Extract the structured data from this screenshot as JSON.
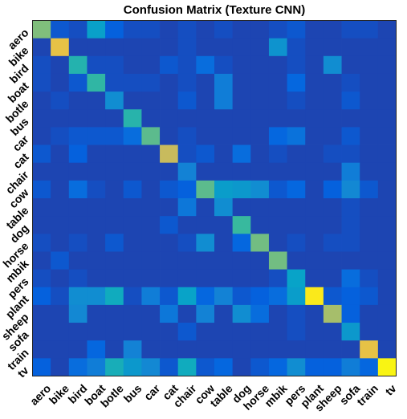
{
  "chart_data": {
    "type": "heatmap",
    "title": "Confusion Matrix (Texture CNN)",
    "xlabel": "",
    "ylabel": "",
    "categories": [
      "aero",
      "bike",
      "bird",
      "boat",
      "botle",
      "bus",
      "car",
      "cat",
      "chair",
      "cow",
      "table",
      "dog",
      "horse",
      "mbik",
      "pers",
      "plant",
      "sheep",
      "sofa",
      "train",
      "tv"
    ],
    "colormap": [
      "#352a87",
      "#0363e1",
      "#1485d4",
      "#06a7c6",
      "#38b99e",
      "#92bf73",
      "#d9ba56",
      "#fcce2e",
      "#f9fb0e"
    ],
    "value_range": [
      0,
      1
    ],
    "grid": false,
    "values": [
      [
        0.6,
        0.1,
        0.08,
        0.35,
        0.12,
        0.08,
        0.08,
        0.06,
        0.08,
        0.06,
        0.08,
        0.06,
        0.06,
        0.08,
        0.1,
        0.06,
        0.06,
        0.08,
        0.08,
        0.06
      ],
      [
        0.06,
        0.8,
        0.06,
        0.06,
        0.06,
        0.06,
        0.06,
        0.06,
        0.08,
        0.06,
        0.06,
        0.06,
        0.06,
        0.3,
        0.08,
        0.06,
        0.06,
        0.06,
        0.06,
        0.06
      ],
      [
        0.08,
        0.06,
        0.45,
        0.08,
        0.08,
        0.06,
        0.06,
        0.1,
        0.08,
        0.16,
        0.08,
        0.06,
        0.06,
        0.06,
        0.08,
        0.06,
        0.28,
        0.06,
        0.06,
        0.06
      ],
      [
        0.08,
        0.06,
        0.1,
        0.48,
        0.08,
        0.08,
        0.08,
        0.06,
        0.08,
        0.06,
        0.22,
        0.06,
        0.06,
        0.06,
        0.14,
        0.06,
        0.06,
        0.08,
        0.06,
        0.06
      ],
      [
        0.06,
        0.08,
        0.06,
        0.06,
        0.28,
        0.06,
        0.06,
        0.06,
        0.1,
        0.06,
        0.22,
        0.06,
        0.06,
        0.06,
        0.08,
        0.06,
        0.06,
        0.1,
        0.06,
        0.06
      ],
      [
        0.06,
        0.06,
        0.06,
        0.06,
        0.06,
        0.46,
        0.06,
        0.06,
        0.06,
        0.06,
        0.06,
        0.06,
        0.06,
        0.06,
        0.06,
        0.06,
        0.06,
        0.06,
        0.06,
        0.06
      ],
      [
        0.06,
        0.08,
        0.1,
        0.1,
        0.1,
        0.16,
        0.55,
        0.06,
        0.08,
        0.06,
        0.06,
        0.06,
        0.06,
        0.14,
        0.18,
        0.06,
        0.06,
        0.1,
        0.06,
        0.06
      ],
      [
        0.1,
        0.06,
        0.12,
        0.06,
        0.06,
        0.06,
        0.06,
        0.72,
        0.08,
        0.1,
        0.06,
        0.16,
        0.06,
        0.08,
        0.06,
        0.06,
        0.08,
        0.08,
        0.06,
        0.06
      ],
      [
        0.06,
        0.06,
        0.06,
        0.06,
        0.06,
        0.06,
        0.06,
        0.06,
        0.24,
        0.06,
        0.06,
        0.06,
        0.06,
        0.06,
        0.06,
        0.06,
        0.06,
        0.22,
        0.06,
        0.06
      ],
      [
        0.1,
        0.06,
        0.16,
        0.08,
        0.06,
        0.1,
        0.06,
        0.1,
        0.12,
        0.55,
        0.34,
        0.32,
        0.28,
        0.1,
        0.14,
        0.06,
        0.12,
        0.26,
        0.1,
        0.06
      ],
      [
        0.06,
        0.06,
        0.06,
        0.06,
        0.06,
        0.06,
        0.06,
        0.06,
        0.2,
        0.06,
        0.28,
        0.06,
        0.06,
        0.06,
        0.06,
        0.06,
        0.06,
        0.08,
        0.06,
        0.06
      ],
      [
        0.06,
        0.06,
        0.06,
        0.06,
        0.06,
        0.06,
        0.06,
        0.1,
        0.06,
        0.06,
        0.06,
        0.5,
        0.06,
        0.06,
        0.06,
        0.06,
        0.06,
        0.08,
        0.06,
        0.06
      ],
      [
        0.08,
        0.06,
        0.08,
        0.06,
        0.1,
        0.06,
        0.06,
        0.06,
        0.08,
        0.28,
        0.06,
        0.14,
        0.58,
        0.06,
        0.08,
        0.06,
        0.08,
        0.08,
        0.06,
        0.06
      ],
      [
        0.06,
        0.1,
        0.06,
        0.06,
        0.06,
        0.06,
        0.06,
        0.06,
        0.06,
        0.06,
        0.06,
        0.06,
        0.06,
        0.58,
        0.06,
        0.06,
        0.06,
        0.06,
        0.06,
        0.06
      ],
      [
        0.08,
        0.06,
        0.08,
        0.06,
        0.06,
        0.06,
        0.06,
        0.06,
        0.06,
        0.06,
        0.06,
        0.06,
        0.06,
        0.08,
        0.36,
        0.06,
        0.06,
        0.16,
        0.08,
        0.06
      ],
      [
        0.12,
        0.08,
        0.28,
        0.28,
        0.4,
        0.08,
        0.22,
        0.1,
        0.36,
        0.14,
        0.24,
        0.1,
        0.12,
        0.16,
        0.34,
        0.95,
        0.1,
        0.12,
        0.1,
        0.06
      ],
      [
        0.06,
        0.06,
        0.26,
        0.06,
        0.06,
        0.06,
        0.06,
        0.2,
        0.06,
        0.24,
        0.06,
        0.28,
        0.16,
        0.06,
        0.08,
        0.06,
        0.66,
        0.12,
        0.06,
        0.06
      ],
      [
        0.06,
        0.06,
        0.06,
        0.06,
        0.06,
        0.06,
        0.06,
        0.06,
        0.1,
        0.06,
        0.06,
        0.06,
        0.06,
        0.06,
        0.08,
        0.06,
        0.06,
        0.32,
        0.06,
        0.06
      ],
      [
        0.06,
        0.06,
        0.06,
        0.14,
        0.06,
        0.24,
        0.06,
        0.06,
        0.06,
        0.06,
        0.06,
        0.06,
        0.06,
        0.06,
        0.06,
        0.06,
        0.06,
        0.06,
        0.8,
        0.06
      ],
      [
        0.12,
        0.06,
        0.16,
        0.22,
        0.42,
        0.32,
        0.26,
        0.1,
        0.4,
        0.1,
        0.14,
        0.06,
        0.1,
        0.14,
        0.28,
        0.12,
        0.12,
        0.22,
        0.14,
        0.98
      ]
    ]
  }
}
